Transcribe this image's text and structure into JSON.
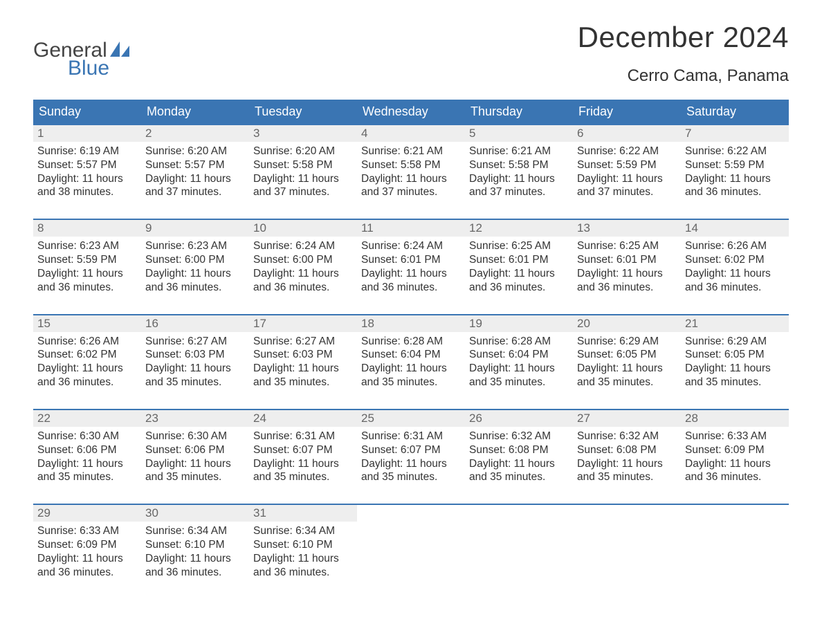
{
  "brand": {
    "word1": "General",
    "word2": "Blue",
    "icon_color": "#3a75b3",
    "text_color_top": "#444444",
    "text_color_bottom": "#3a75b3"
  },
  "title": "December 2024",
  "location": "Cerro Cama, Panama",
  "colors": {
    "header_bg": "#3a75b3",
    "header_text": "#ffffff",
    "row_border": "#3a75b3",
    "daynum_bg": "#eeeeee",
    "daynum_text": "#666666",
    "body_text": "#333333",
    "page_bg": "#ffffff"
  },
  "typography": {
    "month_title_fontsize": 42,
    "location_fontsize": 24,
    "dow_fontsize": 18,
    "daynum_fontsize": 17,
    "body_fontsize": 15.5,
    "logo_fontsize": 30
  },
  "days_of_week": [
    "Sunday",
    "Monday",
    "Tuesday",
    "Wednesday",
    "Thursday",
    "Friday",
    "Saturday"
  ],
  "weeks": [
    [
      {
        "n": "1",
        "sunrise": "Sunrise: 6:19 AM",
        "sunset": "Sunset: 5:57 PM",
        "daylight1": "Daylight: 11 hours",
        "daylight2": "and 38 minutes."
      },
      {
        "n": "2",
        "sunrise": "Sunrise: 6:20 AM",
        "sunset": "Sunset: 5:57 PM",
        "daylight1": "Daylight: 11 hours",
        "daylight2": "and 37 minutes."
      },
      {
        "n": "3",
        "sunrise": "Sunrise: 6:20 AM",
        "sunset": "Sunset: 5:58 PM",
        "daylight1": "Daylight: 11 hours",
        "daylight2": "and 37 minutes."
      },
      {
        "n": "4",
        "sunrise": "Sunrise: 6:21 AM",
        "sunset": "Sunset: 5:58 PM",
        "daylight1": "Daylight: 11 hours",
        "daylight2": "and 37 minutes."
      },
      {
        "n": "5",
        "sunrise": "Sunrise: 6:21 AM",
        "sunset": "Sunset: 5:58 PM",
        "daylight1": "Daylight: 11 hours",
        "daylight2": "and 37 minutes."
      },
      {
        "n": "6",
        "sunrise": "Sunrise: 6:22 AM",
        "sunset": "Sunset: 5:59 PM",
        "daylight1": "Daylight: 11 hours",
        "daylight2": "and 37 minutes."
      },
      {
        "n": "7",
        "sunrise": "Sunrise: 6:22 AM",
        "sunset": "Sunset: 5:59 PM",
        "daylight1": "Daylight: 11 hours",
        "daylight2": "and 36 minutes."
      }
    ],
    [
      {
        "n": "8",
        "sunrise": "Sunrise: 6:23 AM",
        "sunset": "Sunset: 5:59 PM",
        "daylight1": "Daylight: 11 hours",
        "daylight2": "and 36 minutes."
      },
      {
        "n": "9",
        "sunrise": "Sunrise: 6:23 AM",
        "sunset": "Sunset: 6:00 PM",
        "daylight1": "Daylight: 11 hours",
        "daylight2": "and 36 minutes."
      },
      {
        "n": "10",
        "sunrise": "Sunrise: 6:24 AM",
        "sunset": "Sunset: 6:00 PM",
        "daylight1": "Daylight: 11 hours",
        "daylight2": "and 36 minutes."
      },
      {
        "n": "11",
        "sunrise": "Sunrise: 6:24 AM",
        "sunset": "Sunset: 6:01 PM",
        "daylight1": "Daylight: 11 hours",
        "daylight2": "and 36 minutes."
      },
      {
        "n": "12",
        "sunrise": "Sunrise: 6:25 AM",
        "sunset": "Sunset: 6:01 PM",
        "daylight1": "Daylight: 11 hours",
        "daylight2": "and 36 minutes."
      },
      {
        "n": "13",
        "sunrise": "Sunrise: 6:25 AM",
        "sunset": "Sunset: 6:01 PM",
        "daylight1": "Daylight: 11 hours",
        "daylight2": "and 36 minutes."
      },
      {
        "n": "14",
        "sunrise": "Sunrise: 6:26 AM",
        "sunset": "Sunset: 6:02 PM",
        "daylight1": "Daylight: 11 hours",
        "daylight2": "and 36 minutes."
      }
    ],
    [
      {
        "n": "15",
        "sunrise": "Sunrise: 6:26 AM",
        "sunset": "Sunset: 6:02 PM",
        "daylight1": "Daylight: 11 hours",
        "daylight2": "and 36 minutes."
      },
      {
        "n": "16",
        "sunrise": "Sunrise: 6:27 AM",
        "sunset": "Sunset: 6:03 PM",
        "daylight1": "Daylight: 11 hours",
        "daylight2": "and 35 minutes."
      },
      {
        "n": "17",
        "sunrise": "Sunrise: 6:27 AM",
        "sunset": "Sunset: 6:03 PM",
        "daylight1": "Daylight: 11 hours",
        "daylight2": "and 35 minutes."
      },
      {
        "n": "18",
        "sunrise": "Sunrise: 6:28 AM",
        "sunset": "Sunset: 6:04 PM",
        "daylight1": "Daylight: 11 hours",
        "daylight2": "and 35 minutes."
      },
      {
        "n": "19",
        "sunrise": "Sunrise: 6:28 AM",
        "sunset": "Sunset: 6:04 PM",
        "daylight1": "Daylight: 11 hours",
        "daylight2": "and 35 minutes."
      },
      {
        "n": "20",
        "sunrise": "Sunrise: 6:29 AM",
        "sunset": "Sunset: 6:05 PM",
        "daylight1": "Daylight: 11 hours",
        "daylight2": "and 35 minutes."
      },
      {
        "n": "21",
        "sunrise": "Sunrise: 6:29 AM",
        "sunset": "Sunset: 6:05 PM",
        "daylight1": "Daylight: 11 hours",
        "daylight2": "and 35 minutes."
      }
    ],
    [
      {
        "n": "22",
        "sunrise": "Sunrise: 6:30 AM",
        "sunset": "Sunset: 6:06 PM",
        "daylight1": "Daylight: 11 hours",
        "daylight2": "and 35 minutes."
      },
      {
        "n": "23",
        "sunrise": "Sunrise: 6:30 AM",
        "sunset": "Sunset: 6:06 PM",
        "daylight1": "Daylight: 11 hours",
        "daylight2": "and 35 minutes."
      },
      {
        "n": "24",
        "sunrise": "Sunrise: 6:31 AM",
        "sunset": "Sunset: 6:07 PM",
        "daylight1": "Daylight: 11 hours",
        "daylight2": "and 35 minutes."
      },
      {
        "n": "25",
        "sunrise": "Sunrise: 6:31 AM",
        "sunset": "Sunset: 6:07 PM",
        "daylight1": "Daylight: 11 hours",
        "daylight2": "and 35 minutes."
      },
      {
        "n": "26",
        "sunrise": "Sunrise: 6:32 AM",
        "sunset": "Sunset: 6:08 PM",
        "daylight1": "Daylight: 11 hours",
        "daylight2": "and 35 minutes."
      },
      {
        "n": "27",
        "sunrise": "Sunrise: 6:32 AM",
        "sunset": "Sunset: 6:08 PM",
        "daylight1": "Daylight: 11 hours",
        "daylight2": "and 35 minutes."
      },
      {
        "n": "28",
        "sunrise": "Sunrise: 6:33 AM",
        "sunset": "Sunset: 6:09 PM",
        "daylight1": "Daylight: 11 hours",
        "daylight2": "and 36 minutes."
      }
    ],
    [
      {
        "n": "29",
        "sunrise": "Sunrise: 6:33 AM",
        "sunset": "Sunset: 6:09 PM",
        "daylight1": "Daylight: 11 hours",
        "daylight2": "and 36 minutes."
      },
      {
        "n": "30",
        "sunrise": "Sunrise: 6:34 AM",
        "sunset": "Sunset: 6:10 PM",
        "daylight1": "Daylight: 11 hours",
        "daylight2": "and 36 minutes."
      },
      {
        "n": "31",
        "sunrise": "Sunrise: 6:34 AM",
        "sunset": "Sunset: 6:10 PM",
        "daylight1": "Daylight: 11 hours",
        "daylight2": "and 36 minutes."
      },
      null,
      null,
      null,
      null
    ]
  ]
}
